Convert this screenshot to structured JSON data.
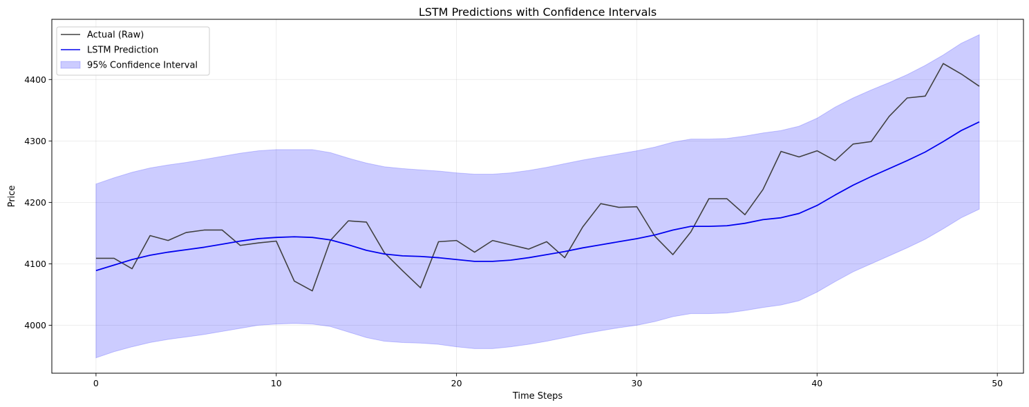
{
  "chart_data": {
    "type": "line",
    "title": "LSTM Predictions with Confidence Intervals",
    "xlabel": "Time Steps",
    "ylabel": "Price",
    "xlim": [
      -2.45,
      51.45
    ],
    "ylim": [
      3922,
      4498
    ],
    "xticks": [
      0,
      10,
      20,
      30,
      40,
      50
    ],
    "yticks": [
      4000,
      4100,
      4200,
      4300,
      4400
    ],
    "grid": true,
    "legend_position": "top-left",
    "x": [
      0,
      1,
      2,
      3,
      4,
      5,
      6,
      7,
      8,
      9,
      10,
      11,
      12,
      13,
      14,
      15,
      16,
      17,
      18,
      19,
      20,
      21,
      22,
      23,
      24,
      25,
      26,
      27,
      28,
      29,
      30,
      31,
      32,
      33,
      34,
      35,
      36,
      37,
      38,
      39,
      40,
      41,
      42,
      43,
      44,
      45,
      46,
      47,
      48,
      49
    ],
    "series": [
      {
        "name": "Actual (Raw)",
        "kind": "line",
        "color": "#404040",
        "values": [
          4109,
          4109,
          4092,
          4146,
          4138,
          4151,
          4155,
          4155,
          4130,
          4134,
          4137,
          4072,
          4056,
          4138,
          4170,
          4168,
          4118,
          4089,
          4061,
          4136,
          4138,
          4119,
          4138,
          4131,
          4124,
          4136,
          4110,
          4160,
          4198,
          4192,
          4193,
          4145,
          4115,
          4152,
          4206,
          4206,
          4180,
          4221,
          4283,
          4274,
          4284,
          4268,
          4295,
          4299,
          4340,
          4370,
          4373,
          4426,
          4409,
          4389
        ]
      },
      {
        "name": "LSTM Prediction",
        "kind": "line",
        "color": "#0000ee",
        "values": [
          4089,
          4098,
          4107,
          4114,
          4119,
          4123,
          4127,
          4132,
          4137,
          4141,
          4143,
          4144,
          4143,
          4139,
          4131,
          4122,
          4116,
          4113,
          4112,
          4110,
          4107,
          4104,
          4104,
          4106,
          4110,
          4115,
          4120,
          4126,
          4131,
          4136,
          4141,
          4147,
          4155,
          4161,
          4161,
          4162,
          4166,
          4172,
          4175,
          4182,
          4195,
          4212,
          4228,
          4242,
          4255,
          4268,
          4282,
          4299,
          4317,
          4331
        ]
      },
      {
        "name": "95% Confidence Interval",
        "kind": "band",
        "color": "#0000ff",
        "lower": [
          3947,
          3957,
          3965,
          3972,
          3977,
          3981,
          3985,
          3990,
          3995,
          4000,
          4002,
          4003,
          4002,
          3998,
          3989,
          3980,
          3974,
          3972,
          3971,
          3969,
          3965,
          3962,
          3962,
          3965,
          3969,
          3974,
          3980,
          3986,
          3991,
          3996,
          4000,
          4006,
          4014,
          4019,
          4019,
          4020,
          4024,
          4029,
          4033,
          4040,
          4054,
          4071,
          4087,
          4100,
          4113,
          4126,
          4140,
          4157,
          4175,
          4189
        ],
        "upper": [
          4230,
          4240,
          4249,
          4256,
          4261,
          4265,
          4270,
          4275,
          4280,
          4284,
          4286,
          4286,
          4286,
          4281,
          4272,
          4264,
          4258,
          4255,
          4253,
          4251,
          4248,
          4246,
          4246,
          4248,
          4252,
          4257,
          4263,
          4269,
          4274,
          4279,
          4284,
          4290,
          4298,
          4303,
          4303,
          4304,
          4308,
          4313,
          4317,
          4324,
          4337,
          4355,
          4370,
          4383,
          4395,
          4408,
          4423,
          4440,
          4459,
          4473
        ]
      }
    ]
  }
}
